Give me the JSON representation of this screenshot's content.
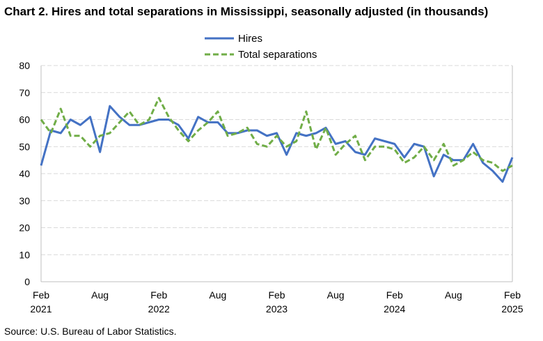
{
  "title": "Chart 2. Hires and total separations in Mississippi, seasonally adjusted (in thousands)",
  "source": "Source: U.S. Bureau of Labor Statistics.",
  "colors": {
    "hires": "#4472c4",
    "separations": "#70ad47",
    "grid": "#d9d9d9",
    "axis": "#bfbfbf"
  },
  "chart_data": {
    "type": "line",
    "title": "Chart 2. Hires and total separations in Mississippi, seasonally adjusted (in thousands)",
    "xlabel": "",
    "ylabel": "",
    "ylim": [
      0,
      80
    ],
    "yticks": [
      "0",
      "10",
      "20",
      "30",
      "40",
      "50",
      "60",
      "70",
      "80"
    ],
    "grid": "horizontal",
    "legend": "top-center",
    "x": [
      "Feb 2021",
      "Mar 2021",
      "Apr 2021",
      "May 2021",
      "Jun 2021",
      "Jul 2021",
      "Aug 2021",
      "Sep 2021",
      "Oct 2021",
      "Nov 2021",
      "Dec 2021",
      "Jan 2022",
      "Feb 2022",
      "Mar 2022",
      "Apr 2022",
      "May 2022",
      "Jun 2022",
      "Jul 2022",
      "Aug 2022",
      "Sep 2022",
      "Oct 2022",
      "Nov 2022",
      "Dec 2022",
      "Jan 2023",
      "Feb 2023",
      "Mar 2023",
      "Apr 2023",
      "May 2023",
      "Jun 2023",
      "Jul 2023",
      "Aug 2023",
      "Sep 2023",
      "Oct 2023",
      "Nov 2023",
      "Dec 2023",
      "Jan 2024",
      "Feb 2024",
      "Mar 2024",
      "Apr 2024",
      "May 2024",
      "Jun 2024",
      "Jul 2024",
      "Aug 2024",
      "Sep 2024",
      "Oct 2024",
      "Nov 2024",
      "Dec 2024",
      "Jan 2025",
      "Feb 2025"
    ],
    "xticks": [
      {
        "index": 0,
        "month": "Feb",
        "year": "2021"
      },
      {
        "index": 6,
        "month": "Aug",
        "year": ""
      },
      {
        "index": 12,
        "month": "Feb",
        "year": "2022"
      },
      {
        "index": 18,
        "month": "Aug",
        "year": ""
      },
      {
        "index": 24,
        "month": "Feb",
        "year": "2023"
      },
      {
        "index": 30,
        "month": "Aug",
        "year": ""
      },
      {
        "index": 36,
        "month": "Feb",
        "year": "2024"
      },
      {
        "index": 42,
        "month": "Aug",
        "year": ""
      },
      {
        "index": 48,
        "month": "Feb",
        "year": "2025"
      }
    ],
    "series": [
      {
        "name": "Hires",
        "style": "solid",
        "values": [
          43,
          56,
          55,
          60,
          58,
          61,
          48,
          65,
          61,
          58,
          58,
          59,
          60,
          60,
          58,
          53,
          61,
          59,
          59,
          55,
          55,
          56,
          56,
          54,
          55,
          47,
          55,
          54,
          55,
          57,
          51,
          52,
          48,
          47,
          53,
          52,
          51,
          46,
          51,
          50,
          39,
          47,
          45,
          45,
          51,
          44,
          41,
          37,
          46
        ]
      },
      {
        "name": "Total separations",
        "style": "dashed",
        "values": [
          60,
          55,
          64,
          54,
          54,
          50,
          54,
          55,
          59,
          63,
          58,
          60,
          68,
          61,
          56,
          52,
          56,
          59,
          63,
          54,
          55,
          57,
          51,
          50,
          54,
          50,
          52,
          63,
          49,
          57,
          47,
          51,
          54,
          45,
          50,
          50,
          49,
          44,
          46,
          50,
          45,
          51,
          43,
          45,
          48,
          45,
          44,
          41,
          43
        ]
      }
    ]
  }
}
